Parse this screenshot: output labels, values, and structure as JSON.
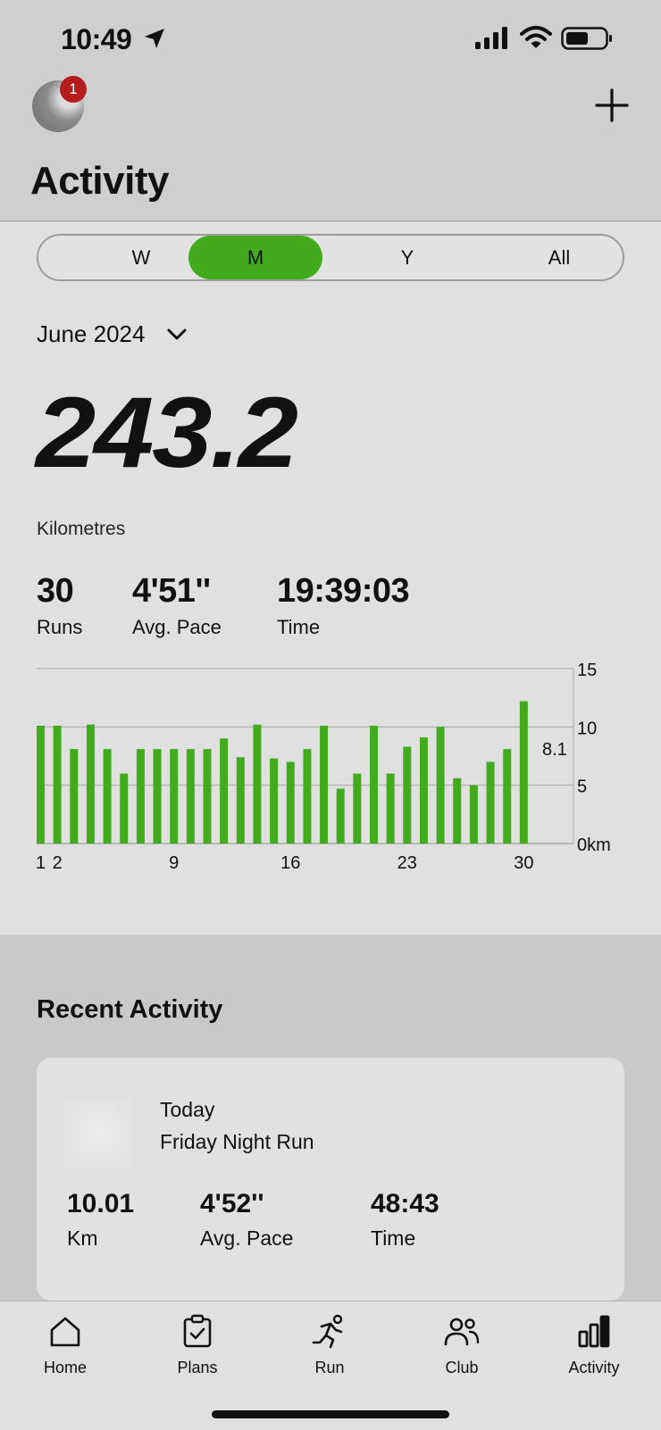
{
  "status_bar": {
    "time": "10:49"
  },
  "header": {
    "notification_count": "1",
    "title": "Activity"
  },
  "tabs": [
    {
      "label": "W",
      "active": false
    },
    {
      "label": "M",
      "active": true
    },
    {
      "label": "Y",
      "active": false
    },
    {
      "label": "All",
      "active": false
    }
  ],
  "period": "June 2024",
  "summary": {
    "distance": "243.2",
    "unit": "Kilometres"
  },
  "stats": [
    {
      "value": "30",
      "label": "Runs"
    },
    {
      "value": "4'51''",
      "label": "Avg. Pace"
    },
    {
      "value": "19:39:03",
      "label": "Time"
    }
  ],
  "chart_data": {
    "type": "bar",
    "categories": [
      "1",
      "2",
      "3",
      "4",
      "5",
      "6",
      "7",
      "8",
      "9",
      "10",
      "11",
      "12",
      "13",
      "14",
      "15",
      "16",
      "17",
      "18",
      "19",
      "20",
      "21",
      "22",
      "23",
      "24",
      "25",
      "26",
      "27",
      "28",
      "29",
      "30"
    ],
    "values": [
      10.1,
      10.1,
      8.1,
      10.2,
      8.1,
      6.0,
      8.1,
      8.1,
      8.1,
      8.1,
      8.1,
      9.0,
      7.4,
      10.2,
      7.3,
      7.0,
      8.1,
      10.1,
      4.7,
      6.0,
      10.1,
      6.0,
      8.3,
      9.1,
      10.0,
      5.6,
      5.0,
      7.0,
      8.1,
      12.2
    ],
    "x_tick_labels": [
      "1",
      "2",
      "9",
      "16",
      "23",
      "30"
    ],
    "y_tick_labels": [
      "15",
      "10",
      "5",
      "0km"
    ],
    "ylim": [
      0,
      15
    ],
    "average_line": 8.1,
    "average_label": "8.1",
    "bar_color": "#41ab1c",
    "grid": true
  },
  "recent": {
    "title": "Recent Activity",
    "card": {
      "date": "Today",
      "name": "Friday Night Run",
      "stats": [
        {
          "value": "10.01",
          "label": "Km"
        },
        {
          "value": "4'52''",
          "label": "Avg. Pace"
        },
        {
          "value": "48:43",
          "label": "Time"
        }
      ]
    }
  },
  "nav": [
    {
      "label": "Home",
      "icon": "home-icon"
    },
    {
      "label": "Plans",
      "icon": "clipboard-check-icon"
    },
    {
      "label": "Run",
      "icon": "runner-icon"
    },
    {
      "label": "Club",
      "icon": "people-icon"
    },
    {
      "label": "Activity",
      "icon": "bar-chart-icon",
      "active": true
    }
  ],
  "colors": {
    "accent": "#41ab1c",
    "badge": "#b71c1c"
  }
}
